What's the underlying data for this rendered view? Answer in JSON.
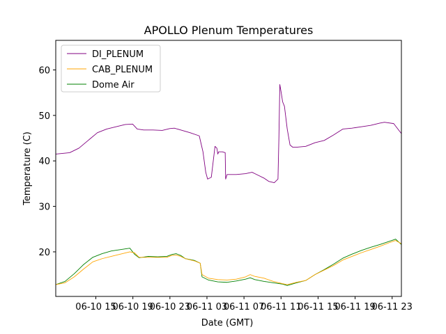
{
  "chart_data": {
    "type": "line",
    "title": "APOLLO Plenum Temperatures",
    "xlabel": "Date (GMT)",
    "ylabel": "Temperature (C)",
    "xlim_hours": [
      0,
      37.33
    ],
    "ylim": [
      10.2,
      66.5
    ],
    "yticks": [
      {
        "value": 20,
        "label": "20"
      },
      {
        "value": 30,
        "label": "30"
      },
      {
        "value": 40,
        "label": "40"
      },
      {
        "value": 50,
        "label": "50"
      },
      {
        "value": 60,
        "label": "60"
      }
    ],
    "xticks": [
      {
        "hours": 4.33,
        "label": "06-10 15"
      },
      {
        "hours": 8.33,
        "label": "06-10 19"
      },
      {
        "hours": 12.33,
        "label": "06-10 23"
      },
      {
        "hours": 16.33,
        "label": "06-11 03"
      },
      {
        "hours": 20.33,
        "label": "06-11 07"
      },
      {
        "hours": 24.33,
        "label": "06-11 11"
      },
      {
        "hours": 28.33,
        "label": "06-11 15"
      },
      {
        "hours": 32.33,
        "label": "06-11 19"
      },
      {
        "hours": 36.33,
        "label": "06-11 23"
      }
    ],
    "legend_position": "top-left",
    "series": [
      {
        "name": "DI_PLENUM",
        "color": "#800080",
        "x": [
          0,
          1.5,
          2.5,
          3.5,
          4.5,
          5.5,
          6.5,
          7.5,
          8.3,
          8.8,
          9.5,
          10.5,
          11.5,
          12.3,
          12.8,
          13.5,
          14.5,
          15.5,
          15.9,
          16.2,
          16.4,
          16.8,
          17.2,
          17.4,
          17.5,
          17.6,
          18.0,
          18.3,
          18.35,
          18.5,
          19.5,
          20.5,
          21.2,
          21.5,
          22.5,
          23.0,
          23.6,
          24.0,
          24.1,
          24.2,
          24.35,
          24.5,
          24.7,
          25.0,
          25.3,
          25.6,
          26,
          27,
          28,
          29,
          30,
          31,
          32,
          33,
          34,
          35,
          35.5,
          36.5,
          37.33
        ],
        "y": [
          41.5,
          41.8,
          42.8,
          44.5,
          46.2,
          47.0,
          47.5,
          48.0,
          48.1,
          47.0,
          46.8,
          46.8,
          46.7,
          47.1,
          47.2,
          46.8,
          46.2,
          45.5,
          42,
          37.5,
          36,
          36.4,
          43.2,
          42.8,
          41.5,
          42,
          42,
          41.8,
          36,
          37,
          37,
          37.2,
          37.5,
          37.2,
          36.2,
          35.5,
          35.2,
          36,
          45,
          56.8,
          55,
          53,
          52,
          47,
          43.5,
          43,
          43,
          43.2,
          44,
          44.5,
          45.7,
          47,
          47.2,
          47.5,
          47.8,
          48.3,
          48.5,
          48.2,
          46
        ]
      },
      {
        "name": "CAB_PLENUM",
        "color": "#ffa500",
        "x": [
          0,
          1,
          2,
          3,
          4,
          5,
          6,
          7,
          8,
          8.5,
          9,
          10,
          11,
          12,
          12.5,
          13,
          13.5,
          14,
          15,
          15.6,
          15.8,
          16.5,
          17.5,
          18.5,
          19.5,
          20.5,
          21,
          21.5,
          22.5,
          23.5,
          24.5,
          25,
          26,
          27,
          28,
          29,
          30,
          31,
          32,
          33,
          34,
          35,
          36,
          36.7,
          37.33
        ],
        "y": [
          12.8,
          13.2,
          14.5,
          16.2,
          17.8,
          18.5,
          19,
          19.5,
          20,
          19.8,
          18.8,
          18.8,
          18.8,
          18.8,
          19.2,
          19.3,
          19,
          18.5,
          18,
          17.5,
          15,
          14.2,
          13.9,
          13.8,
          14,
          14.5,
          15,
          14.6,
          14.2,
          13.5,
          13,
          12.8,
          13.3,
          13.7,
          15,
          16,
          17,
          18.2,
          19,
          19.8,
          20.5,
          21.2,
          22,
          22.5,
          21.8
        ]
      },
      {
        "name": "Dome Air",
        "color": "#008000",
        "x": [
          0,
          1,
          2,
          3,
          4,
          4.5,
          5,
          6,
          7,
          8,
          8.5,
          9,
          10,
          11,
          12,
          12.5,
          13,
          13.5,
          14,
          15,
          15.6,
          15.8,
          16.5,
          17.5,
          18.5,
          19.5,
          20.5,
          21,
          21.5,
          22.5,
          23.5,
          24.5,
          25,
          26,
          27,
          28,
          29,
          30,
          31,
          32,
          33,
          34,
          35,
          36,
          36.7,
          37.33
        ],
        "y": [
          12.8,
          13.5,
          15.2,
          17.2,
          18.8,
          19.2,
          19.6,
          20.2,
          20.5,
          20.8,
          19.5,
          18.7,
          19,
          18.9,
          19,
          19.4,
          19.6,
          19.2,
          18.5,
          18.1,
          17.5,
          14.5,
          13.8,
          13.4,
          13.3,
          13.6,
          14,
          14.3,
          13.9,
          13.5,
          13.2,
          12.9,
          12.6,
          13.2,
          13.7,
          15,
          16.1,
          17.3,
          18.6,
          19.5,
          20.3,
          21,
          21.6,
          22.3,
          22.8,
          21.6
        ]
      }
    ]
  }
}
